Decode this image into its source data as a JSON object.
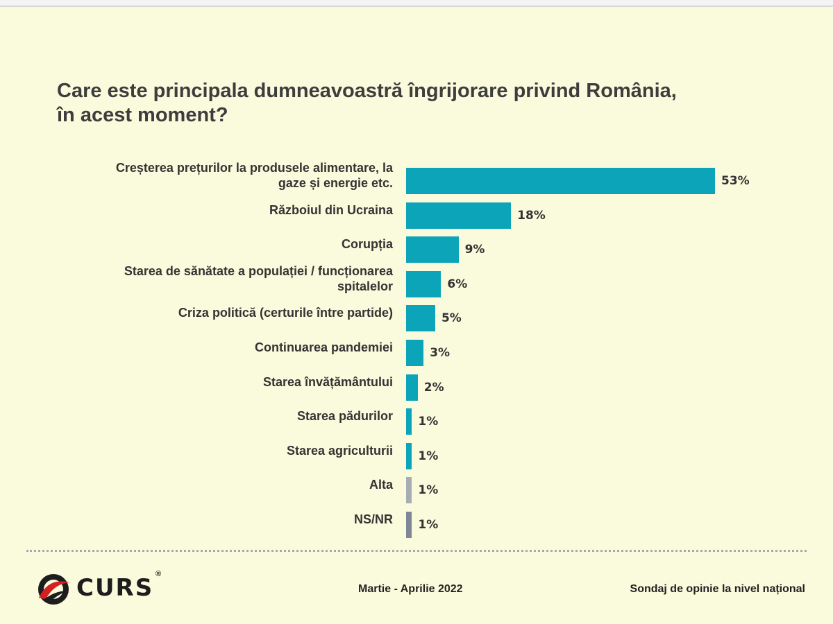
{
  "chart_data": {
    "type": "bar",
    "orientation": "horizontal",
    "title": "Care este principala dumneavoastră îngrijorare privind România,\nîn acest moment?",
    "categories": [
      "Creșterea prețurilor la produsele alimentare, la\ngaze și energie etc.",
      "Războiul din Ucraina",
      "Corupția",
      "Starea de sănătate a populației / funcționarea\nspitalelor",
      "Criza politică (certurile între partide)",
      "Continuarea pandemiei",
      "Starea învățământului",
      "Starea pădurilor",
      "Starea agriculturii",
      "Alta",
      "NS/NR"
    ],
    "values": [
      53,
      18,
      9,
      6,
      5,
      3,
      2,
      1,
      1,
      1,
      1
    ],
    "value_labels": [
      "53%",
      "18%",
      "9%",
      "6%",
      "5%",
      "3%",
      "2%",
      "1%",
      "1%",
      "1%",
      "1%"
    ],
    "colors": [
      "#0ca4b8",
      "#0ca4b8",
      "#0ca4b8",
      "#0ca4b8",
      "#0ca4b8",
      "#0ca4b8",
      "#0ca4b8",
      "#0ca4b8",
      "#0ca4b8",
      "#a8adb4",
      "#7f8796"
    ],
    "xlim": [
      0,
      53
    ],
    "grid": false,
    "legend": "none"
  },
  "footer": {
    "logo_text": "CURS",
    "logo_mark": "®",
    "date": "Martie - Aprilie 2022",
    "survey": "Sondaj de opinie la nivel național"
  }
}
